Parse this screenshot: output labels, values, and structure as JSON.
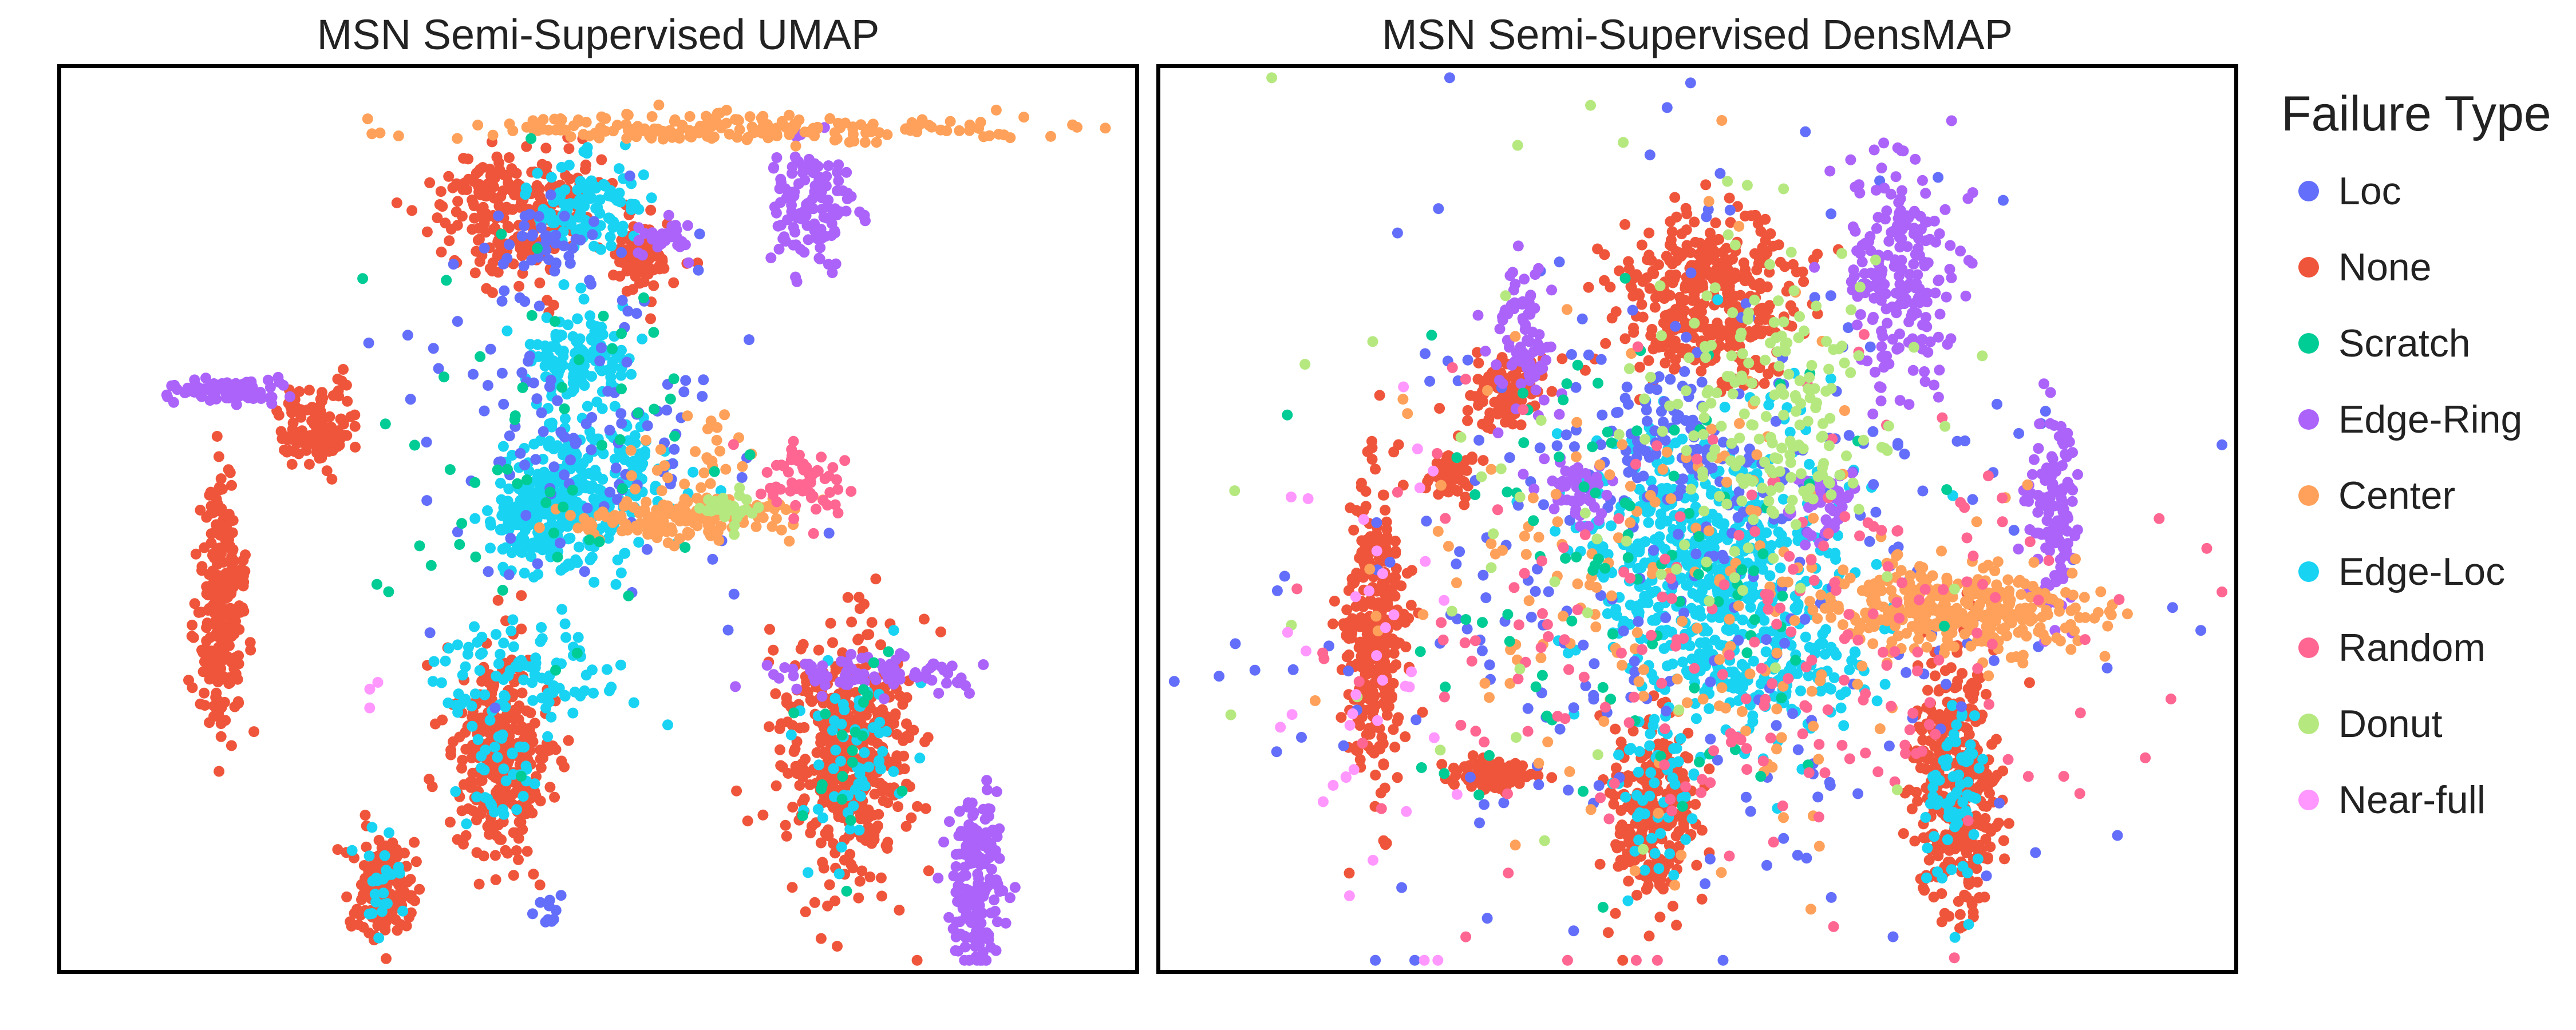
{
  "chart_data": [
    {
      "type": "scatter",
      "title": "MSN Semi-Supervised UMAP",
      "xlabel": "",
      "ylabel": "",
      "axes_ticks": "none",
      "legend": "shared, right of plots",
      "clusters": [
        {
          "name": "None",
          "x": 0.15,
          "y": 0.4,
          "sx": 0.011,
          "sy": 0.07,
          "n": 260
        },
        {
          "name": "None",
          "x": 0.41,
          "y": 0.24,
          "sx": 0.022,
          "sy": 0.058,
          "n": 320
        },
        {
          "name": "None",
          "x": 0.73,
          "y": 0.24,
          "sx": 0.032,
          "sy": 0.075,
          "n": 420
        },
        {
          "name": "None",
          "x": 0.3,
          "y": 0.095,
          "sx": 0.014,
          "sy": 0.03,
          "n": 170
        },
        {
          "name": "None",
          "x": 0.43,
          "y": 0.84,
          "sx": 0.04,
          "sy": 0.035,
          "n": 240
        },
        {
          "name": "None",
          "x": 0.54,
          "y": 0.79,
          "sx": 0.015,
          "sy": 0.02,
          "n": 90
        },
        {
          "name": "None",
          "x": 0.24,
          "y": 0.6,
          "sx": 0.018,
          "sy": 0.022,
          "n": 110
        },
        {
          "name": "Edge-Loc",
          "x": 0.73,
          "y": 0.24,
          "sx": 0.025,
          "sy": 0.055,
          "n": 60
        },
        {
          "name": "Edge-Loc",
          "x": 0.41,
          "y": 0.24,
          "sx": 0.018,
          "sy": 0.045,
          "n": 40
        },
        {
          "name": "Edge-Loc",
          "x": 0.3,
          "y": 0.095,
          "sx": 0.01,
          "sy": 0.025,
          "n": 25
        },
        {
          "name": "Edge-Loc",
          "x": 0.45,
          "y": 0.5,
          "sx": 0.025,
          "sy": 0.03,
          "n": 220
        },
        {
          "name": "Edge-Loc",
          "x": 0.49,
          "y": 0.55,
          "sx": 0.04,
          "sy": 0.04,
          "n": 160
        },
        {
          "name": "Edge-Loc",
          "x": 0.48,
          "y": 0.68,
          "sx": 0.025,
          "sy": 0.025,
          "n": 120
        },
        {
          "name": "Edge-Loc",
          "x": 0.49,
          "y": 0.84,
          "sx": 0.025,
          "sy": 0.025,
          "n": 110
        },
        {
          "name": "Edge-Loc",
          "x": 0.43,
          "y": 0.33,
          "sx": 0.05,
          "sy": 0.025,
          "n": 90
        },
        {
          "name": "Loc",
          "x": 0.49,
          "y": 0.6,
          "sx": 0.08,
          "sy": 0.09,
          "n": 120
        },
        {
          "name": "Loc",
          "x": 0.45,
          "y": 0.8,
          "sx": 0.03,
          "sy": 0.02,
          "n": 40
        },
        {
          "name": "Loc",
          "x": 0.45,
          "y": 0.07,
          "sx": 0.01,
          "sy": 0.01,
          "n": 10
        },
        {
          "name": "Edge-Ring",
          "x": 0.85,
          "y": 0.1,
          "sx": 0.012,
          "sy": 0.05,
          "n": 170
        },
        {
          "name": "Edge-Ring",
          "x": 0.16,
          "y": 0.64,
          "sx": 0.03,
          "sy": 0.006,
          "n": 80
        },
        {
          "name": "Edge-Ring",
          "x": 0.7,
          "y": 0.84,
          "sx": 0.02,
          "sy": 0.035,
          "n": 120
        },
        {
          "name": "Edge-Ring",
          "x": 0.75,
          "y": 0.33,
          "sx": 0.05,
          "sy": 0.01,
          "n": 80
        },
        {
          "name": "Edge-Ring",
          "x": 0.56,
          "y": 0.81,
          "sx": 0.015,
          "sy": 0.01,
          "n": 30
        },
        {
          "name": "Center",
          "x": 0.58,
          "y": 0.5,
          "sx": 0.05,
          "sy": 0.012,
          "n": 140
        },
        {
          "name": "Center",
          "x": 0.62,
          "y": 0.93,
          "sx": 0.13,
          "sy": 0.008,
          "n": 200
        },
        {
          "name": "Center",
          "x": 0.59,
          "y": 0.57,
          "sx": 0.03,
          "sy": 0.03,
          "n": 30
        },
        {
          "name": "Scratch",
          "x": 0.45,
          "y": 0.58,
          "sx": 0.08,
          "sy": 0.12,
          "n": 60
        },
        {
          "name": "Scratch",
          "x": 0.73,
          "y": 0.24,
          "sx": 0.025,
          "sy": 0.055,
          "n": 20
        },
        {
          "name": "Random",
          "x": 0.69,
          "y": 0.54,
          "sx": 0.02,
          "sy": 0.018,
          "n": 60
        },
        {
          "name": "Donut",
          "x": 0.62,
          "y": 0.51,
          "sx": 0.015,
          "sy": 0.01,
          "n": 30
        },
        {
          "name": "Near-full",
          "x": 0.3,
          "y": 0.31,
          "sx": 0.01,
          "sy": 0.01,
          "n": 3
        }
      ]
    },
    {
      "type": "scatter",
      "title": "MSN Semi-Supervised DensMAP",
      "xlabel": "",
      "ylabel": "",
      "axes_ticks": "none",
      "legend": "shared, right of plots",
      "clusters": [
        {
          "name": "None",
          "x": 0.2,
          "y": 0.37,
          "sx": 0.015,
          "sy": 0.08,
          "n": 300
        },
        {
          "name": "None",
          "x": 0.74,
          "y": 0.21,
          "sx": 0.02,
          "sy": 0.07,
          "n": 360
        },
        {
          "name": "None",
          "x": 0.46,
          "y": 0.18,
          "sx": 0.02,
          "sy": 0.05,
          "n": 240
        },
        {
          "name": "None",
          "x": 0.51,
          "y": 0.74,
          "sx": 0.04,
          "sy": 0.05,
          "n": 380
        },
        {
          "name": "None",
          "x": 0.32,
          "y": 0.64,
          "sx": 0.02,
          "sy": 0.02,
          "n": 100
        },
        {
          "name": "None",
          "x": 0.27,
          "y": 0.55,
          "sx": 0.012,
          "sy": 0.015,
          "n": 60
        },
        {
          "name": "None",
          "x": 0.31,
          "y": 0.22,
          "sx": 0.02,
          "sy": 0.01,
          "n": 90
        },
        {
          "name": "Edge-Loc",
          "x": 0.51,
          "y": 0.45,
          "sx": 0.06,
          "sy": 0.08,
          "n": 550
        },
        {
          "name": "Edge-Loc",
          "x": 0.57,
          "y": 0.33,
          "sx": 0.05,
          "sy": 0.04,
          "n": 120
        },
        {
          "name": "Edge-Loc",
          "x": 0.46,
          "y": 0.2,
          "sx": 0.02,
          "sy": 0.05,
          "n": 50
        },
        {
          "name": "Edge-Loc",
          "x": 0.74,
          "y": 0.2,
          "sx": 0.015,
          "sy": 0.05,
          "n": 70
        },
        {
          "name": "Loc",
          "x": 0.5,
          "y": 0.45,
          "sx": 0.18,
          "sy": 0.18,
          "n": 300
        },
        {
          "name": "Loc",
          "x": 0.48,
          "y": 0.58,
          "sx": 0.03,
          "sy": 0.03,
          "n": 70
        },
        {
          "name": "Edge-Ring",
          "x": 0.69,
          "y": 0.77,
          "sx": 0.025,
          "sy": 0.06,
          "n": 200
        },
        {
          "name": "Edge-Ring",
          "x": 0.83,
          "y": 0.5,
          "sx": 0.012,
          "sy": 0.06,
          "n": 120
        },
        {
          "name": "Edge-Ring",
          "x": 0.34,
          "y": 0.7,
          "sx": 0.015,
          "sy": 0.04,
          "n": 80
        },
        {
          "name": "Edge-Ring",
          "x": 0.39,
          "y": 0.53,
          "sx": 0.015,
          "sy": 0.02,
          "n": 50
        },
        {
          "name": "Edge-Ring",
          "x": 0.62,
          "y": 0.52,
          "sx": 0.015,
          "sy": 0.02,
          "n": 40
        },
        {
          "name": "Center",
          "x": 0.74,
          "y": 0.4,
          "sx": 0.06,
          "sy": 0.025,
          "n": 320
        },
        {
          "name": "Center",
          "x": 0.48,
          "y": 0.42,
          "sx": 0.13,
          "sy": 0.15,
          "n": 180
        },
        {
          "name": "Scratch",
          "x": 0.45,
          "y": 0.46,
          "sx": 0.12,
          "sy": 0.15,
          "n": 100
        },
        {
          "name": "Random",
          "x": 0.55,
          "y": 0.36,
          "sx": 0.16,
          "sy": 0.13,
          "n": 220
        },
        {
          "name": "Donut",
          "x": 0.57,
          "y": 0.62,
          "sx": 0.05,
          "sy": 0.08,
          "n": 180
        },
        {
          "name": "Donut",
          "x": 0.45,
          "y": 0.5,
          "sx": 0.18,
          "sy": 0.2,
          "n": 50
        },
        {
          "name": "Near-full",
          "x": 0.2,
          "y": 0.3,
          "sx": 0.05,
          "sy": 0.12,
          "n": 40
        }
      ]
    }
  ],
  "legend": {
    "title": "Failure Type",
    "items": [
      {
        "label": "Loc",
        "color": "#636efa"
      },
      {
        "label": "None",
        "color": "#ef553b"
      },
      {
        "label": "Scratch",
        "color": "#00cc96"
      },
      {
        "label": "Edge-Ring",
        "color": "#ab63fa"
      },
      {
        "label": "Center",
        "color": "#ffa15a"
      },
      {
        "label": "Edge-Loc",
        "color": "#19d3f3"
      },
      {
        "label": "Random",
        "color": "#ff6692"
      },
      {
        "label": "Donut",
        "color": "#b6e880"
      },
      {
        "label": "Near-full",
        "color": "#ff97ff"
      }
    ]
  }
}
